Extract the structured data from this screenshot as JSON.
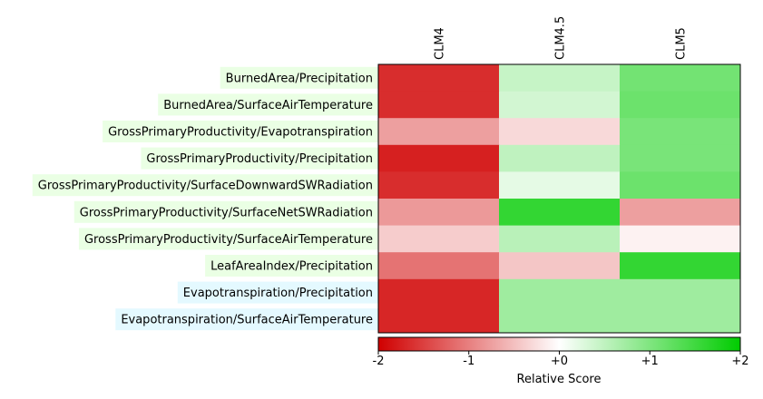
{
  "chart_data": {
    "type": "heatmap",
    "columns": [
      "CLM4",
      "CLM4.5",
      "CLM5"
    ],
    "rows": [
      {
        "label": "BurnedArea/Precipitation",
        "group_color": "#eaffe4",
        "values": [
          -1.65,
          0.45,
          1.1
        ]
      },
      {
        "label": "BurnedArea/SurfaceAirTemperature",
        "group_color": "#eaffe4",
        "values": [
          -1.65,
          0.35,
          1.15
        ]
      },
      {
        "label": "GrossPrimaryProductivity/Evapotranspiration",
        "group_color": "#eaffe4",
        "values": [
          -0.75,
          -0.3,
          1.05
        ]
      },
      {
        "label": "GrossPrimaryProductivity/Precipitation",
        "group_color": "#eaffe4",
        "values": [
          -1.75,
          0.5,
          1.05
        ]
      },
      {
        "label": "GrossPrimaryProductivity/SurfaceDownwardSWRadiation",
        "group_color": "#eaffe4",
        "values": [
          -1.65,
          0.2,
          1.15
        ]
      },
      {
        "label": "GrossPrimaryProductivity/SurfaceNetSWRadiation",
        "group_color": "#eaffe4",
        "values": [
          -0.8,
          1.6,
          -0.75
        ]
      },
      {
        "label": "GrossPrimaryProductivity/SurfaceAirTemperature",
        "group_color": "#eaffe4",
        "values": [
          -0.4,
          0.55,
          -0.1
        ]
      },
      {
        "label": "LeafAreaIndex/Precipitation",
        "group_color": "#eaffe4",
        "values": [
          -1.1,
          -0.45,
          1.6
        ]
      },
      {
        "label": "Evapotranspiration/Precipitation",
        "group_color": "#e4f9ff",
        "values": [
          -1.7,
          0.75,
          0.75
        ]
      },
      {
        "label": "Evapotranspiration/SurfaceAirTemperature",
        "group_color": "#e4f9ff",
        "values": [
          -1.7,
          0.75,
          0.75
        ]
      }
    ],
    "colorbar": {
      "range": [
        -2,
        2
      ],
      "ticks": [
        -2,
        -1,
        0,
        1,
        2
      ],
      "tick_labels": [
        "-2",
        "-1",
        "+0",
        "+1",
        "+2"
      ],
      "label": "Relative Score",
      "low_color": "#d00000",
      "mid_color": "#ffffff",
      "high_color": "#00cc00"
    }
  }
}
